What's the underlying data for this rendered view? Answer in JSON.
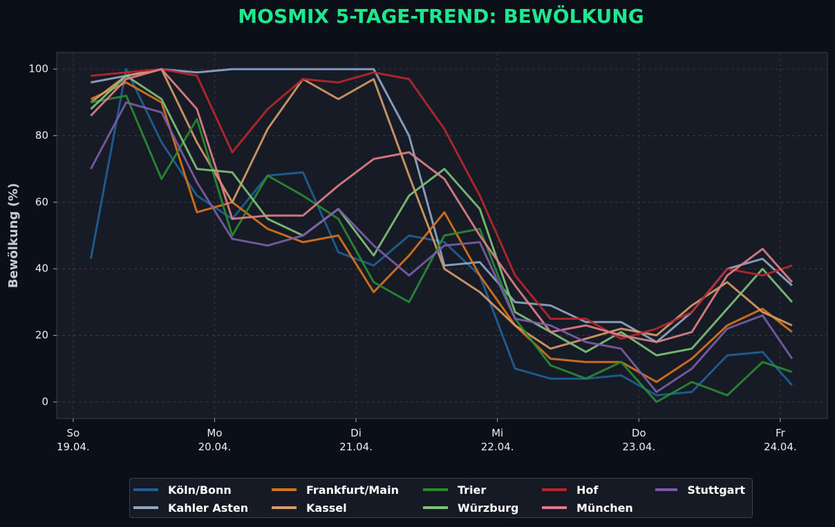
{
  "chart_data": {
    "type": "line",
    "title": "MOSMIX 5-TAGE-TREND: BEWÖLKUNG",
    "y_label": "Bewölkung (%)",
    "x": [
      3,
      9,
      15,
      21,
      27,
      33,
      39,
      45,
      51,
      57,
      63,
      69,
      75,
      81,
      87,
      93,
      99,
      105,
      111,
      117,
      122
    ],
    "xlim": [
      -2.8,
      128
    ],
    "xticks": [
      {
        "value": 0,
        "label": "So\n19.04."
      },
      {
        "value": 24,
        "label": "Mo\n20.04."
      },
      {
        "value": 48,
        "label": "Di\n21.04."
      },
      {
        "value": 72,
        "label": "Mi\n22.04."
      },
      {
        "value": 96,
        "label": "Do\n23.04."
      },
      {
        "value": 120,
        "label": "Fr\n24.04."
      }
    ],
    "ylim": [
      -5,
      105
    ],
    "yticks": [
      0,
      20,
      40,
      60,
      80,
      100
    ],
    "grid": true,
    "legend": "bottom",
    "series": [
      {
        "name": "Köln/Bonn",
        "color": "#1f5f94",
        "values": [
          43,
          100,
          78,
          62,
          55,
          68,
          69,
          45,
          41,
          50,
          48,
          38,
          10,
          7,
          7,
          8,
          2,
          3,
          14,
          15,
          5
        ]
      },
      {
        "name": "Kahler Asten",
        "color": "#8fa7c6",
        "values": [
          96,
          98,
          100,
          99,
          100,
          100,
          100,
          100,
          100,
          80,
          41,
          42,
          30,
          29,
          24,
          24,
          18,
          27,
          40,
          43,
          35
        ]
      },
      {
        "name": "Frankfurt/Main",
        "color": "#d9731a",
        "values": [
          91,
          96,
          90,
          57,
          60,
          52,
          48,
          50,
          33,
          44,
          57,
          38,
          23,
          13,
          12,
          12,
          6,
          13,
          23,
          28,
          21
        ]
      },
      {
        "name": "Kassel",
        "color": "#d69b67",
        "values": [
          90,
          98,
          100,
          78,
          60,
          82,
          97,
          91,
          97,
          68,
          40,
          33,
          23,
          16,
          19,
          22,
          20,
          29,
          36,
          27,
          23
        ]
      },
      {
        "name": "Trier",
        "color": "#2a8a34",
        "values": [
          90,
          92,
          67,
          85,
          50,
          68,
          62,
          55,
          36,
          30,
          50,
          52,
          25,
          11,
          7,
          12,
          0,
          6,
          2,
          12,
          9
        ]
      },
      {
        "name": "Würzburg",
        "color": "#7fc07a",
        "values": [
          88,
          98,
          91,
          70,
          69,
          55,
          50,
          58,
          44,
          62,
          70,
          58,
          27,
          21,
          15,
          21,
          14,
          16,
          28,
          40,
          30
        ]
      },
      {
        "name": "Hof",
        "color": "#b8262c",
        "values": [
          98,
          99,
          100,
          98,
          75,
          88,
          97,
          96,
          99,
          97,
          82,
          62,
          38,
          25,
          25,
          19,
          22,
          27,
          40,
          38,
          41
        ]
      },
      {
        "name": "München",
        "color": "#de7f86",
        "values": [
          86,
          97,
          100,
          88,
          55,
          56,
          56,
          65,
          73,
          75,
          67,
          50,
          35,
          21,
          23,
          20,
          18,
          21,
          38,
          46,
          36
        ]
      },
      {
        "name": "Stuttgart",
        "color": "#7c5ca6",
        "values": [
          70,
          90,
          87,
          66,
          49,
          47,
          50,
          58,
          47,
          38,
          47,
          48,
          25,
          23,
          18,
          16,
          3,
          10,
          22,
          26,
          13
        ]
      }
    ]
  }
}
